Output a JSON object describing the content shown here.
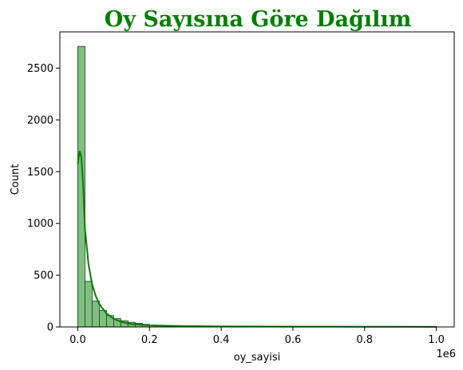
{
  "chart_data": {
    "type": "histogram",
    "title": "Oy Sayısına Göre Dağılım",
    "xlabel": "oy_sayisi",
    "ylabel": "Count",
    "x_offset_label": "1e6",
    "xlim": [
      -0.05,
      1.05
    ],
    "ylim": [
      0,
      2850
    ],
    "x_ticks": [
      0.0,
      0.2,
      0.4,
      0.6,
      0.8,
      1.0
    ],
    "x_tick_labels": [
      "0.0",
      "0.2",
      "0.4",
      "0.6",
      "0.8",
      "1.0"
    ],
    "y_ticks": [
      0,
      500,
      1000,
      1500,
      2000,
      2500
    ],
    "y_tick_labels": [
      "0",
      "500",
      "1000",
      "1500",
      "2000",
      "2500"
    ],
    "bin_width": 0.02,
    "bins_start": 0.0,
    "counts": [
      2710,
      440,
      250,
      160,
      110,
      80,
      60,
      45,
      35,
      25,
      18,
      12,
      8,
      6,
      5,
      4,
      3,
      3,
      2,
      2,
      2,
      2,
      1,
      1,
      1,
      1,
      1,
      1,
      1,
      1,
      1,
      1,
      1,
      1,
      1,
      1,
      1,
      1,
      1,
      1,
      1,
      1,
      1,
      1,
      1,
      1,
      1,
      1,
      1,
      1
    ],
    "kde": {
      "x": [
        0.0,
        0.005,
        0.01,
        0.015,
        0.02,
        0.03,
        0.04,
        0.05,
        0.06,
        0.08,
        0.1,
        0.12,
        0.15,
        0.2,
        0.3,
        0.4,
        0.5,
        0.6,
        0.7,
        0.8,
        0.9,
        1.0
      ],
      "y": [
        1570,
        1700,
        1640,
        1360,
        950,
        600,
        410,
        300,
        220,
        130,
        80,
        50,
        28,
        15,
        8,
        5,
        4,
        3,
        3,
        2,
        2,
        1
      ]
    },
    "colors": {
      "bar_fill": "#7fbf7f",
      "bar_edge": "#1a3a1a",
      "kde_line": "#008000",
      "title": "#008000"
    },
    "grid": false
  }
}
